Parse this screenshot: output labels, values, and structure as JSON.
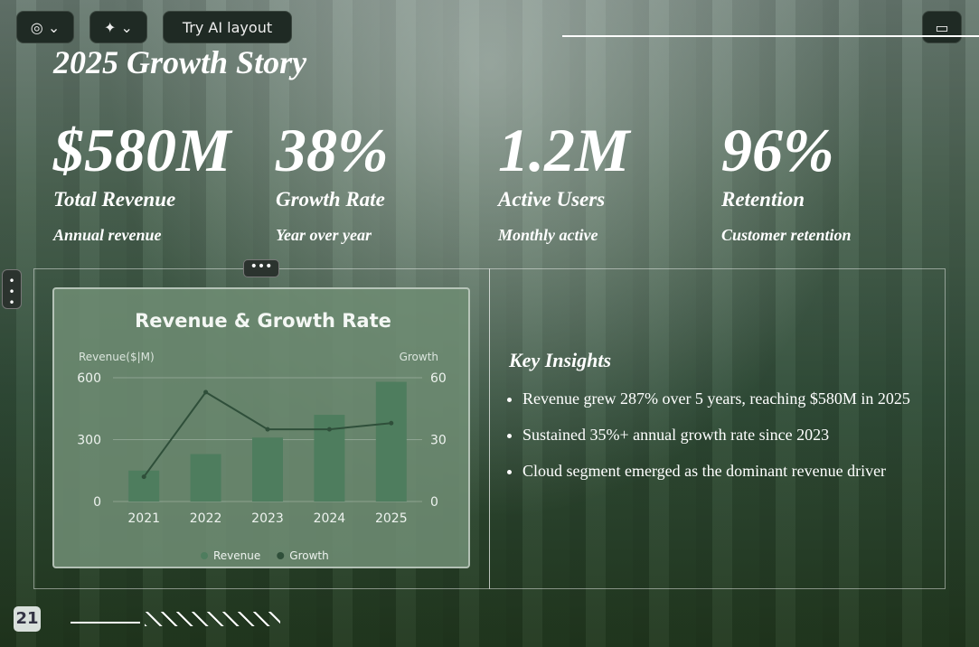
{
  "toolbar": {
    "ai_button": "Try AI layout"
  },
  "slide": {
    "title": "2025 Growth Story",
    "stats": [
      {
        "value": "$580M",
        "label": "Total Revenue",
        "note": "Annual revenue"
      },
      {
        "value": "38%",
        "label": "Growth Rate",
        "note": "Year over year"
      },
      {
        "value": "1.2M",
        "label": "Active Users",
        "note": "Monthly active"
      },
      {
        "value": "96%",
        "label": "Retention",
        "note": "Customer retention"
      }
    ],
    "insights": {
      "title": "Key Insights",
      "items": [
        "Revenue grew 287% over 5 years, reaching $580M in 2025",
        "Sustained 35%+ annual growth rate since 2023",
        "Cloud segment emerged as the dominant revenue driver"
      ]
    },
    "page_number": "21"
  },
  "chart_data": {
    "type": "bar",
    "title": "Revenue & Growth Rate",
    "y_label": "Revenue($|M)",
    "y2_label": "Growth",
    "categories": [
      "2021",
      "2022",
      "2023",
      "2024",
      "2025"
    ],
    "series": [
      {
        "name": "Revenue",
        "type": "bar",
        "color": "#4e7d5e",
        "values": [
          150,
          230,
          310,
          420,
          580
        ]
      },
      {
        "name": "Growth",
        "type": "line",
        "axis": "y2",
        "color": "#2f4f3a",
        "values": [
          12,
          53,
          35,
          35,
          38
        ]
      }
    ],
    "ylim": [
      0,
      600
    ],
    "yticks": [
      0,
      300,
      600
    ],
    "y2lim": [
      0,
      60
    ],
    "y2ticks": [
      0,
      30,
      60
    ],
    "grid": true,
    "legend": "bottom"
  }
}
